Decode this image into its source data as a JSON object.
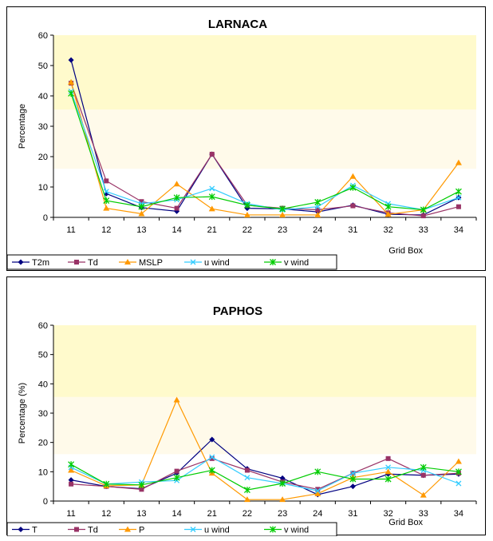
{
  "chart_data": [
    {
      "type": "line",
      "title": "LARNACA",
      "ylabel": "Percentage",
      "xlabel": "Grid Box",
      "categories": [
        "11",
        "12",
        "13",
        "14",
        "21",
        "22",
        "23",
        "24",
        "31",
        "32",
        "33",
        "34"
      ],
      "ylim": [
        0,
        60
      ],
      "yticks": [
        0,
        10,
        20,
        30,
        40,
        50,
        60
      ],
      "background_bands": [
        {
          "from": 0,
          "to": 16,
          "color": "#ffffff"
        },
        {
          "from": 16,
          "to": 35.5,
          "color": "#fffaea"
        },
        {
          "from": 35.5,
          "to": 60,
          "color": "#fffacc"
        }
      ],
      "legend_position": "bottom-left",
      "series": [
        {
          "name": "T2m",
          "color": "#000080",
          "marker": "diamond",
          "values": [
            51.8,
            7.8,
            3.2,
            2.0,
            20.8,
            3.0,
            2.8,
            1.8,
            4.0,
            1.0,
            0.8,
            6.5
          ]
        },
        {
          "name": "Td",
          "color": "#993366",
          "marker": "square",
          "values": [
            44.2,
            12.0,
            5.2,
            3.0,
            20.8,
            4.0,
            3.0,
            2.5,
            3.8,
            1.5,
            0.5,
            3.5
          ]
        },
        {
          "name": "MSLP",
          "color": "#ff9900",
          "marker": "triangle",
          "values": [
            44.5,
            3.0,
            1.2,
            11.0,
            2.8,
            0.8,
            0.8,
            0.8,
            13.5,
            1.0,
            2.5,
            18.0
          ]
        },
        {
          "name": "u wind",
          "color": "#33ccff",
          "marker": "x",
          "values": [
            41.5,
            8.5,
            4.5,
            5.8,
            9.5,
            4.5,
            2.5,
            3.5,
            10.5,
            4.5,
            2.5,
            6.5
          ]
        },
        {
          "name": "v wind",
          "color": "#00cc00",
          "marker": "star",
          "values": [
            40.8,
            5.5,
            3.5,
            6.5,
            6.8,
            4.0,
            2.8,
            5.0,
            9.8,
            3.5,
            2.5,
            8.5
          ]
        }
      ]
    },
    {
      "type": "line",
      "title": "PAPHOS",
      "ylabel": "Percentage (%)",
      "xlabel": "Grid Box",
      "categories": [
        "11",
        "12",
        "13",
        "14",
        "21",
        "22",
        "23",
        "24",
        "31",
        "32",
        "33",
        "34"
      ],
      "ylim": [
        0,
        60
      ],
      "yticks": [
        0,
        10,
        20,
        30,
        40,
        50,
        60
      ],
      "background_bands": [
        {
          "from": 0,
          "to": 16,
          "color": "#ffffff"
        },
        {
          "from": 16,
          "to": 35.5,
          "color": "#fffaea"
        },
        {
          "from": 35.5,
          "to": 60,
          "color": "#fffacc"
        }
      ],
      "legend_position": "bottom-left",
      "series": [
        {
          "name": "T",
          "color": "#000080",
          "marker": "diamond",
          "values": [
            7.2,
            5.0,
            4.2,
            9.5,
            21.0,
            11.0,
            7.8,
            2.2,
            5.0,
            9.2,
            8.8,
            9.2
          ]
        },
        {
          "name": "Td",
          "color": "#993366",
          "marker": "square",
          "values": [
            5.8,
            5.0,
            4.0,
            10.2,
            14.5,
            10.5,
            6.5,
            4.0,
            9.5,
            14.5,
            8.8,
            9.5
          ]
        },
        {
          "name": "P",
          "color": "#ff9900",
          "marker": "triangle",
          "values": [
            10.5,
            5.2,
            5.5,
            34.5,
            9.5,
            0.5,
            0.5,
            2.5,
            8.0,
            10.0,
            2.0,
            13.5
          ]
        },
        {
          "name": "u wind",
          "color": "#33ccff",
          "marker": "x",
          "values": [
            11.5,
            5.8,
            6.5,
            7.0,
            15.0,
            8.0,
            6.0,
            3.5,
            9.5,
            11.5,
            10.5,
            6.0
          ]
        },
        {
          "name": "v wind",
          "color": "#00cc00",
          "marker": "star",
          "values": [
            12.5,
            5.8,
            5.5,
            8.0,
            10.5,
            3.8,
            6.0,
            10.0,
            7.5,
            7.5,
            11.5,
            10.0
          ]
        }
      ]
    }
  ]
}
